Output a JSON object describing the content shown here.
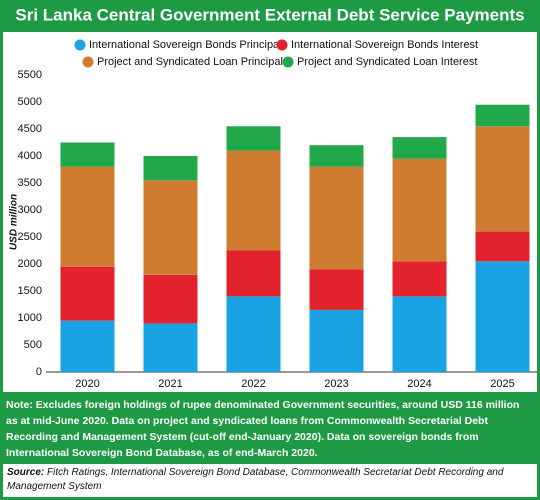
{
  "chart_data": {
    "type": "stacked_bar",
    "title": "Sri Lanka Central Government External Debt Service Payments",
    "ylabel": "USD million",
    "categories": [
      "2020",
      "2021",
      "2022",
      "2023",
      "2024",
      "2025"
    ],
    "series": [
      {
        "name": "International Sovereign Bonds Principal",
        "color": "#1aa3e3",
        "values": [
          950,
          900,
          1400,
          1150,
          1400,
          2050
        ]
      },
      {
        "name": "International Sovereign Bonds Interest",
        "color": "#e2232e",
        "values": [
          1000,
          900,
          850,
          750,
          650,
          550
        ]
      },
      {
        "name": "Project and Syndicated Loan Principal",
        "color": "#cf7b30",
        "values": [
          1850,
          1750,
          1850,
          1900,
          1900,
          1950
        ]
      },
      {
        "name": "Project and Syndicated Loan Interest",
        "color": "#21a84a",
        "values": [
          450,
          450,
          450,
          400,
          400,
          400
        ]
      }
    ],
    "ylim": [
      0,
      5500
    ],
    "yticks": [
      0,
      500,
      1000,
      1500,
      2000,
      2500,
      3000,
      3500,
      4000,
      4500,
      5000,
      5500
    ],
    "grid": false,
    "note": "Note: Excludes foreign holdings of rupee denominated Government securities, around USD 116 million as at mid-June 2020. Data on project and syndicated loans from Commonwealth Secretarial Debt Recording and Management System (cut-off end-January 2020). Data on sovereign bonds from International Sovereign Bond Database, as of end-March 2020.",
    "source_label": "Source:",
    "source": "Fitch Ratings, International Sovereign Bond Database, Commonwealth Secretariat Debt Recording and Management System"
  }
}
